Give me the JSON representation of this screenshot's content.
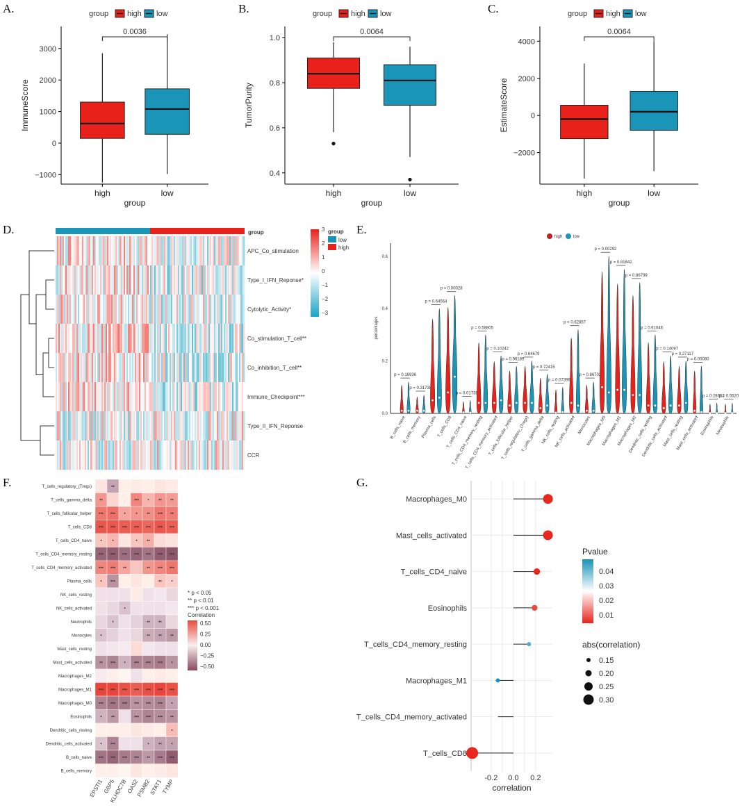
{
  "colors": {
    "high": "#E8211B",
    "low": "#1A95B8"
  },
  "legend": {
    "title": "group",
    "high": "high",
    "low": "low"
  },
  "chart_data": [
    {
      "panel": "A.",
      "type": "box",
      "xlabel": "group",
      "ylabel": "ImmuneScore",
      "categories": [
        "high",
        "low"
      ],
      "ylim": [
        -1300,
        3700
      ],
      "yticks": [
        -1000,
        0,
        1000,
        2000,
        3000
      ],
      "boxes": [
        {
          "min": -1250,
          "q1": 150,
          "median": 620,
          "q3": 1300,
          "max": 2850,
          "outliers": []
        },
        {
          "min": -980,
          "q1": 280,
          "median": 1080,
          "q3": 1720,
          "max": 3450,
          "outliers": []
        }
      ],
      "pvalue": "0.0036"
    },
    {
      "panel": "B.",
      "type": "box",
      "xlabel": "group",
      "ylabel": "TumorPurity",
      "categories": [
        "high",
        "low"
      ],
      "ylim": [
        0.35,
        1.05
      ],
      "yticks": [
        0.4,
        0.6,
        0.8,
        1.0
      ],
      "ytick_labels": [
        "0.4",
        "0.6",
        "0.8",
        "1.0"
      ],
      "boxes": [
        {
          "min": 0.58,
          "q1": 0.775,
          "median": 0.84,
          "q3": 0.91,
          "max": 0.98,
          "outliers": [
            0.53
          ]
        },
        {
          "min": 0.47,
          "q1": 0.7,
          "median": 0.81,
          "q3": 0.88,
          "max": 0.96,
          "outliers": [
            0.37
          ]
        }
      ],
      "pvalue": "0.0064"
    },
    {
      "panel": "C.",
      "type": "box",
      "xlabel": "group",
      "ylabel": "EstimateScore",
      "categories": [
        "high",
        "low"
      ],
      "ylim": [
        -3700,
        4800
      ],
      "yticks": [
        -2000,
        0,
        2000,
        4000
      ],
      "boxes": [
        {
          "min": -3400,
          "q1": -1250,
          "median": -200,
          "q3": 550,
          "max": 2800,
          "outliers": []
        },
        {
          "min": -3000,
          "q1": -800,
          "median": 200,
          "q3": 1300,
          "max": 4000,
          "outliers": []
        }
      ],
      "pvalue": "0.0064"
    },
    {
      "panel": "D.",
      "type": "heatmap",
      "column_annotation": "group",
      "rows": [
        "APC_Co_stimulation",
        "Type_I_IFN_Reponse*",
        "Cytolytic_Activity*",
        "Co_stimulation_T_cell**",
        "Co_inhibition_T_cell**",
        "Immune_Checkpoint***",
        "Type_II_IFN_Reponse",
        "CCR"
      ],
      "scale": {
        "ticks": [
          "3",
          "2",
          "1",
          "0",
          "−1",
          "−2",
          "−3"
        ],
        "range": [
          -3,
          3
        ]
      },
      "legend": {
        "title": "group",
        "items": [
          "low",
          "high"
        ]
      }
    },
    {
      "panel": "E.",
      "type": "violin",
      "ylabel": "percentages",
      "ylim": [
        0,
        0.65
      ],
      "yticks": [
        "0.0",
        "0.2",
        "0.4",
        "0.6"
      ],
      "categories": [
        "B_cells_naive",
        "B_cells_memory",
        "Plasma_cells",
        "T_cells_CD8",
        "T_cells_CD4_naive",
        "T_cells_CD4_memory_resting",
        "T_cells_CD4_memory_activated",
        "T_cells_follicular_helper",
        "T_cells_regulatory_(Tregs)",
        "T_cells_gamma_delta",
        "NK_cells_resting",
        "NK_cells_activated",
        "Monocytes",
        "Macrophages_M0",
        "Macrophages_M1",
        "Macrophages_M2",
        "Dendritic_cells_resting",
        "Dendritic_cells_activated",
        "Mast_cells_resting",
        "Mast_cells_activated",
        "Eosinophils",
        "Neutrophils"
      ],
      "pvalues": [
        "p = 0.16936",
        "p = 0.31738",
        "p = 0.64564",
        "p = 0.00028",
        "p = 0.01738",
        "p = 0.58805",
        "p = 0.10242",
        "p = 0.96189",
        "p = 0.64679",
        "p = 0.72415",
        "p = 0.07396",
        "p = 0.62857",
        "p = 0.86702",
        "p = 0.00292",
        "p = 0.81842",
        "p = 0.86799",
        "p = 0.61046",
        "p = 0.14097",
        "p = 0.27117",
        "p = 0.00080",
        "p = 0.28652",
        "p = 0.5520"
      ],
      "high_medians": [
        0.01,
        0.01,
        0.05,
        0.08,
        0.004,
        0.04,
        0.04,
        0.03,
        0.04,
        0.02,
        0.003,
        0.04,
        0.01,
        0.1,
        0.09,
        0.07,
        0.03,
        0.02,
        0.03,
        0.01,
        0.001,
        0.001
      ],
      "low_medians": [
        0.01,
        0.01,
        0.06,
        0.14,
        0.003,
        0.04,
        0.05,
        0.04,
        0.04,
        0.03,
        0.005,
        0.03,
        0.01,
        0.08,
        0.09,
        0.07,
        0.03,
        0.03,
        0.04,
        0.005,
        0.001,
        0.001
      ],
      "legend": [
        "high",
        "low"
      ]
    },
    {
      "panel": "F.",
      "type": "heatmap",
      "rows": [
        "T_cells_regulatory_(Tregs)",
        "T_cells_gamma_delta",
        "T_cells_follicular_helper",
        "T_cells_CD8",
        "T_cells_CD4_naive",
        "T_cells_CD4_memory_resting",
        "T_cells_CD4_memory_activated",
        "Plasma_cells",
        "NK_cells_resting",
        "NK_cells_activated",
        "Neutrophils",
        "Monocytes",
        "Mast_cells_resting",
        "Mast_cells_activated",
        "Macrophages_M2",
        "Macrophages_M1",
        "Macrophages_M0",
        "Eosinophils",
        "Dendritic_cells_resting",
        "Dendritic_cells_activated",
        "B_cells_naive",
        "B_cells_memory"
      ],
      "columns": [
        "EPSTI1",
        "GBP5",
        "KLHDC7B",
        "OAS2",
        "PSMB2",
        "STAT1",
        "TYMP"
      ],
      "values": [
        [
          0.05,
          -0.25,
          0.02,
          0.03,
          0.02,
          0.05,
          0.03
        ],
        [
          0.3,
          0.1,
          0.02,
          0.35,
          0.2,
          0.3,
          0.28
        ],
        [
          0.4,
          0.42,
          0.25,
          0.3,
          0.32,
          0.4,
          0.38
        ],
        [
          0.5,
          0.5,
          0.48,
          0.48,
          0.45,
          0.5,
          0.48
        ],
        [
          0.15,
          0.2,
          0.05,
          0.15,
          0.22,
          0.08,
          0.06
        ],
        [
          -0.45,
          -0.48,
          -0.42,
          -0.45,
          -0.4,
          -0.48,
          -0.5
        ],
        [
          0.35,
          0.38,
          0.25,
          0.15,
          0.3,
          0.35,
          0.4
        ],
        [
          0.15,
          -0.3,
          0.02,
          0.05,
          0.02,
          0.15,
          0.12
        ],
        [
          -0.05,
          -0.05,
          -0.05,
          0.03,
          -0.05,
          -0.03,
          -0.08
        ],
        [
          -0.05,
          -0.08,
          -0.15,
          -0.05,
          -0.05,
          -0.05,
          -0.03
        ],
        [
          -0.08,
          -0.15,
          -0.05,
          -0.1,
          -0.2,
          -0.2,
          -0.08
        ],
        [
          -0.15,
          -0.1,
          -0.05,
          -0.08,
          -0.22,
          -0.25,
          -0.28
        ],
        [
          -0.05,
          -0.03,
          -0.02,
          0.08,
          -0.03,
          -0.05,
          -0.05
        ],
        [
          -0.3,
          -0.35,
          -0.2,
          -0.35,
          -0.35,
          -0.38,
          -0.3
        ],
        [
          -0.02,
          0.02,
          0.0,
          -0.05,
          0.02,
          0.03,
          0.02
        ],
        [
          0.55,
          0.55,
          0.52,
          0.48,
          0.52,
          0.55,
          0.52
        ],
        [
          -0.35,
          -0.4,
          -0.38,
          -0.3,
          -0.32,
          -0.35,
          -0.25
        ],
        [
          -0.2,
          -0.28,
          -0.05,
          -0.3,
          -0.35,
          -0.32,
          -0.3
        ],
        [
          0.02,
          0.02,
          0.02,
          0.05,
          0.03,
          0.02,
          0.18
        ],
        [
          -0.15,
          -0.35,
          -0.05,
          -0.05,
          -0.2,
          -0.25,
          -0.25
        ],
        [
          -0.4,
          -0.45,
          -0.38,
          -0.35,
          -0.28,
          -0.38,
          -0.48
        ],
        [
          0.02,
          0.02,
          0.0,
          0.05,
          0.02,
          0.03,
          0.05
        ]
      ],
      "stars": [
        [
          "",
          "**",
          "",
          "",
          "",
          "",
          ""
        ],
        [
          "**",
          "",
          "",
          "***",
          "*",
          "**",
          "**"
        ],
        [
          "***",
          "***",
          "*",
          "*",
          "**",
          "***",
          "**"
        ],
        [
          "***",
          "***",
          "***",
          "***",
          "***",
          "***",
          "***"
        ],
        [
          "*",
          "*",
          "",
          "*",
          "**",
          "",
          ""
        ],
        [
          "***",
          "***",
          "***",
          "***",
          "***",
          "***",
          "***"
        ],
        [
          "***",
          "***",
          "**",
          "",
          "**",
          "***",
          "***"
        ],
        [
          "*",
          "***",
          "",
          "",
          "",
          "**",
          "*"
        ],
        [
          "",
          "",
          "",
          "",
          "",
          "",
          ""
        ],
        [
          "",
          "",
          "*",
          "",
          "",
          "",
          ""
        ],
        [
          "",
          "*",
          "",
          "",
          "**",
          "**",
          ""
        ],
        [
          "*",
          "",
          "",
          "",
          "**",
          "**",
          "**"
        ],
        [
          "",
          "",
          "",
          "",
          "",
          "",
          ""
        ],
        [
          "**",
          "***",
          "*",
          "***",
          "***",
          "***",
          "*"
        ],
        [
          "",
          "",
          "",
          "",
          "",
          "",
          ""
        ],
        [
          "***",
          "***",
          "***",
          "***",
          "***",
          "***",
          "***"
        ],
        [
          "***",
          "***",
          "***",
          "***",
          "***",
          "***",
          "*"
        ],
        [
          "*",
          "**",
          "",
          "***",
          "***",
          "***",
          "**"
        ],
        [
          "",
          "",
          "",
          "",
          "",
          "",
          "*"
        ],
        [
          "*",
          "***",
          "",
          "",
          "*",
          "**",
          "*"
        ],
        [
          "***",
          "***",
          "***",
          "***",
          "**",
          "***",
          "***"
        ],
        [
          "",
          "",
          "",
          "",
          "",
          "",
          ""
        ]
      ],
      "legend": {
        "sig": [
          "* p < 0.05",
          "** p < 0.01",
          "*** p < 0.001"
        ],
        "title": "Correlation",
        "ticks": [
          "0.50",
          "0.25",
          "0.00",
          "−0.25",
          "−0.50"
        ]
      }
    },
    {
      "panel": "G.",
      "type": "lollipop",
      "xlabel": "correlation",
      "xlim": [
        -0.38,
        0.35
      ],
      "xticks": [
        -0.2,
        -0.1,
        0.0,
        0.1,
        0.2
      ],
      "xtick_labels": [
        "-0.2",
        "-0.1",
        "0.0",
        "0.1",
        "0.2"
      ],
      "categories": [
        "Macrophages_M0",
        "Mast_cells_activated",
        "T_cells_CD4_naive",
        "Eosinophils",
        "T_cells_CD4_memory_resting",
        "Macrophages_M1",
        "T_cells_CD4_memory_activated",
        "T_cells_CD8"
      ],
      "values": [
        0.31,
        0.31,
        0.21,
        0.19,
        0.14,
        -0.14,
        -0.16,
        -0.37
      ],
      "pvalues": [
        0.001,
        0.001,
        0.005,
        0.008,
        0.04,
        0.045,
        0.025,
        0.001
      ],
      "legend": {
        "ptitle": "Pvalue",
        "pticks": [
          "0.04",
          "0.03",
          "0.02",
          "0.01"
        ],
        "stitle": "abs(correlation)",
        "sticks": [
          "0.15",
          "0.20",
          "0.25",
          "0.30"
        ]
      }
    }
  ]
}
